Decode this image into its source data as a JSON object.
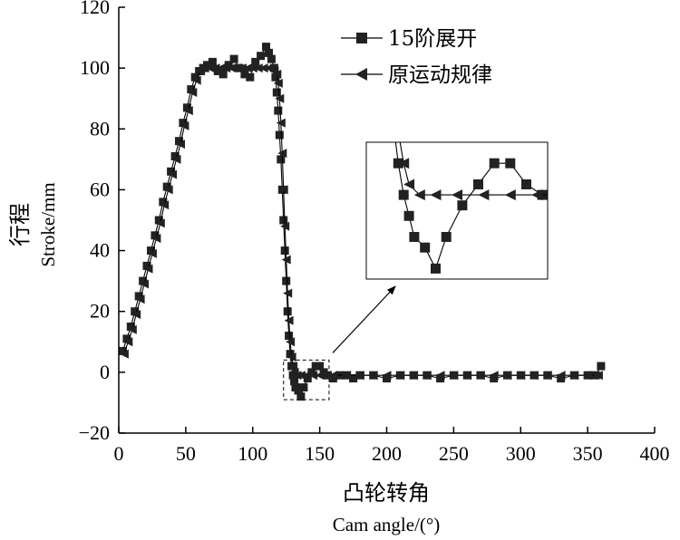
{
  "chart_data": {
    "type": "line",
    "title": "",
    "xlabel_cn": "凸轮转角",
    "xlabel_en": "Cam angle/(°)",
    "ylabel_cn": "行程",
    "ylabel_en": "Stroke/mm",
    "xlim": [
      0,
      400
    ],
    "ylim": [
      -20,
      120
    ],
    "xticks": [
      "0",
      "50",
      "100",
      "150",
      "200",
      "250",
      "300",
      "350",
      "400"
    ],
    "yticks": [
      "−20",
      "0",
      "20",
      "40",
      "60",
      "80",
      "100",
      "120"
    ],
    "grid": false,
    "legend_position": "top-right",
    "series": [
      {
        "name": "15阶展开",
        "marker": "square",
        "x": [
          3,
          6,
          9,
          12,
          15,
          18,
          21,
          24,
          27,
          30,
          33,
          36,
          39,
          42,
          45,
          48,
          51,
          54,
          57,
          60,
          63,
          66,
          70,
          74,
          78,
          82,
          86,
          90,
          94,
          98,
          102,
          106,
          110,
          112,
          114,
          116,
          117,
          118,
          119,
          120,
          121,
          122,
          123,
          124,
          125,
          126,
          127,
          128,
          129,
          130,
          131,
          132,
          134,
          136,
          138,
          141,
          144,
          147,
          150,
          153,
          156,
          160,
          165,
          170,
          175,
          180,
          190,
          200,
          210,
          220,
          230,
          240,
          250,
          260,
          270,
          280,
          290,
          300,
          310,
          320,
          330,
          340,
          350,
          356,
          360
        ],
        "y": [
          7,
          11,
          15,
          20,
          25,
          30,
          35,
          40,
          45,
          50,
          56,
          61,
          66,
          71,
          76,
          82,
          87,
          93,
          97,
          99,
          100,
          101,
          102,
          99,
          98,
          101,
          103,
          100,
          98,
          97,
          102,
          104,
          107,
          105,
          103,
          100,
          97,
          92,
          86,
          78,
          70,
          60,
          50,
          40,
          30,
          20,
          12,
          6,
          2,
          -1,
          -3,
          -5,
          -6,
          -8,
          -5,
          -2,
          0,
          2,
          2,
          0,
          -1,
          -2,
          -1,
          -1,
          -2,
          -1,
          -1,
          -2,
          -1,
          -1,
          -1,
          -2,
          -1,
          -1,
          -1,
          -2,
          -1,
          -1,
          -1,
          -1,
          -2,
          -1,
          -1,
          -1,
          2
        ]
      },
      {
        "name": "原运动规律",
        "marker": "triangle-left",
        "x": [
          4,
          7,
          10,
          13,
          16,
          19,
          22,
          25,
          28,
          31,
          34,
          37,
          40,
          43,
          46,
          49,
          52,
          55,
          58,
          61,
          64,
          68,
          72,
          76,
          80,
          84,
          88,
          92,
          96,
          100,
          104,
          108,
          112,
          114,
          116,
          118,
          119,
          120,
          121,
          122,
          123,
          124,
          125,
          126,
          127,
          128,
          129,
          130,
          131,
          133,
          136,
          140,
          145,
          150,
          155,
          160,
          170,
          180,
          190,
          200,
          210,
          220,
          230,
          240,
          250,
          260,
          270,
          280,
          290,
          300,
          310,
          320,
          330,
          340,
          350,
          358
        ],
        "y": [
          6,
          10,
          14,
          19,
          24,
          29,
          34,
          39,
          44,
          49,
          55,
          60,
          65,
          70,
          75,
          81,
          86,
          92,
          96,
          99,
          100,
          100,
          100,
          100,
          100,
          100,
          100,
          100,
          100,
          100,
          100,
          100,
          100,
          100,
          99,
          98,
          95,
          90,
          82,
          72,
          60,
          48,
          37,
          26,
          17,
          10,
          5,
          2,
          0,
          -1,
          -1,
          -1,
          -1,
          -1,
          -1,
          -1,
          -1,
          -1,
          -1,
          -1,
          -1,
          -1,
          -1,
          -1,
          -1,
          -1,
          -1,
          -1,
          -1,
          -1,
          -1,
          -1,
          -1,
          -1,
          -1,
          -1
        ]
      }
    ]
  }
}
